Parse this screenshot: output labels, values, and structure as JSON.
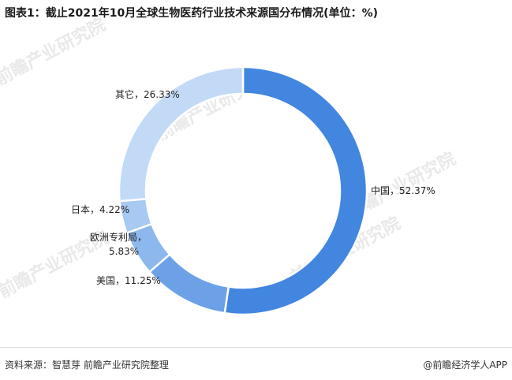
{
  "header": {
    "title": "图表1：截止2021年10月全球生物医药行业技术来源国分布情况(单位：%)"
  },
  "watermark": "前瞻产业研究院",
  "footer": {
    "source": "资料来源：智慧芽 前瞻产业研究院整理",
    "brand": "@前瞻经济学人APP"
  },
  "chart_data": {
    "type": "pie",
    "style": "donut",
    "title": "图表1：截止2021年10月全球生物医药行业技术来源国分布情况(单位：%)",
    "unit": "%",
    "slices": [
      {
        "label": "中国",
        "value": 52.37,
        "text": "中国，52.37%",
        "color": "#4286e0"
      },
      {
        "label": "美国",
        "value": 11.25,
        "text": "美国，11.25%",
        "color": "#6ca1e8"
      },
      {
        "label": "欧洲专利局",
        "value": 5.83,
        "text": "欧洲专利局，5.83%",
        "color": "#8db8ee"
      },
      {
        "label": "日本",
        "value": 4.22,
        "text": "日本，4.22%",
        "color": "#a8c9f2"
      },
      {
        "label": "其它",
        "value": 26.33,
        "text": "其它，26.33%",
        "color": "#c3daf7"
      }
    ]
  }
}
